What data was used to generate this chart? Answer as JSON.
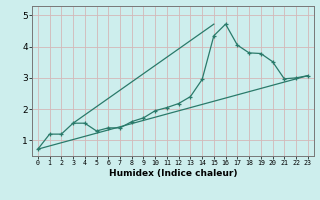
{
  "xlabel": "Humidex (Indice chaleur)",
  "bg_color": "#cdeeed",
  "grid_color": "#d4b8b8",
  "line_color": "#2a7a6a",
  "xlim": [
    -0.5,
    23.5
  ],
  "ylim": [
    0.5,
    5.3
  ],
  "xticks": [
    0,
    1,
    2,
    3,
    4,
    5,
    6,
    7,
    8,
    9,
    10,
    11,
    12,
    13,
    14,
    15,
    16,
    17,
    18,
    19,
    20,
    21,
    22,
    23
  ],
  "yticks": [
    1,
    2,
    3,
    4,
    5
  ],
  "line1_x": [
    0,
    1,
    2,
    3,
    4,
    5,
    6,
    7,
    8,
    9,
    10,
    11,
    12,
    13,
    14,
    15,
    16,
    17,
    18,
    19,
    20,
    21,
    22,
    23
  ],
  "line1_y": [
    0.72,
    1.2,
    1.2,
    1.55,
    1.55,
    1.3,
    1.4,
    1.4,
    1.6,
    1.72,
    1.95,
    2.05,
    2.18,
    2.4,
    2.95,
    4.35,
    4.72,
    4.05,
    3.8,
    3.78,
    3.52,
    2.97,
    3.0,
    3.07
  ],
  "line2_x": [
    0,
    23
  ],
  "line2_y": [
    0.72,
    3.07
  ],
  "line3_x": [
    3,
    15
  ],
  "line3_y": [
    1.55,
    4.72
  ]
}
